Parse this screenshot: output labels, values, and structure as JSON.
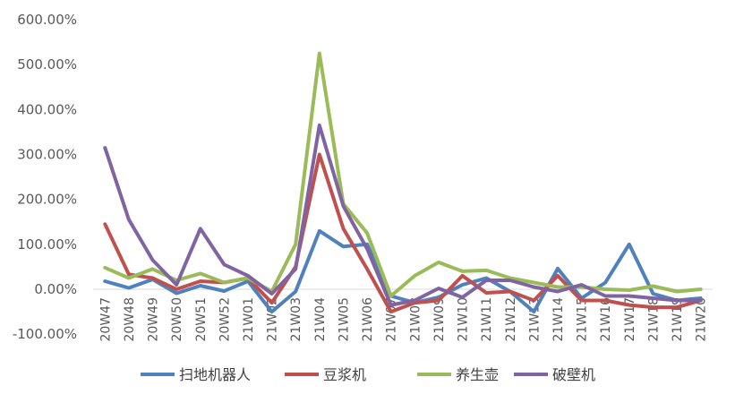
{
  "chart_data": {
    "type": "line",
    "title": "",
    "xlabel": "",
    "ylabel": "",
    "ylim": [
      -100,
      600
    ],
    "y_ticks": [
      "600.00%",
      "500.00%",
      "400.00%",
      "300.00%",
      "200.00%",
      "100.00%",
      "0.00%",
      "-100.00%"
    ],
    "y_tick_values": [
      600,
      500,
      400,
      300,
      200,
      100,
      0,
      -100
    ],
    "grid": false,
    "legend": "bottom",
    "categories": [
      "20W47",
      "20W48",
      "20W49",
      "20W50",
      "20W51",
      "20W52",
      "21W01",
      "21W02",
      "21W03",
      "21W04",
      "21W05",
      "21W06",
      "21W07",
      "21W08",
      "21W09",
      "21W10",
      "21W11",
      "21W12",
      "21W13",
      "21W14",
      "21W15",
      "21W16",
      "21W17",
      "21W18",
      "21W19",
      "21W20"
    ],
    "series": [
      {
        "name": "扫地机器人",
        "color": "#4F81BD",
        "values": [
          18,
          3,
          22,
          -9,
          8,
          -4,
          18,
          -50,
          -5,
          130,
          95,
          100,
          -15,
          -30,
          -18,
          10,
          25,
          -5,
          -50,
          46,
          -20,
          15,
          100,
          -10,
          -25,
          -20
        ]
      },
      {
        "name": "豆浆机",
        "color": "#C0504D",
        "values": [
          145,
          33,
          25,
          0,
          18,
          15,
          25,
          -30,
          50,
          300,
          135,
          45,
          -50,
          -30,
          -25,
          30,
          -8,
          -5,
          -25,
          30,
          -25,
          -25,
          -35,
          -40,
          -40,
          -25
        ]
      },
      {
        "name": "养生壶",
        "color": "#9BBB59",
        "values": [
          48,
          25,
          45,
          20,
          35,
          15,
          25,
          -5,
          100,
          525,
          190,
          125,
          -15,
          30,
          60,
          40,
          42,
          25,
          15,
          5,
          5,
          0,
          -2,
          7,
          -5,
          0
        ]
      },
      {
        "name": "破壁机",
        "color": "#8064A2",
        "values": [
          315,
          155,
          65,
          10,
          135,
          55,
          30,
          -10,
          45,
          365,
          185,
          90,
          -35,
          -25,
          2,
          -18,
          20,
          20,
          5,
          -5,
          10,
          -15,
          -15,
          -20,
          -25,
          -25
        ]
      }
    ]
  }
}
